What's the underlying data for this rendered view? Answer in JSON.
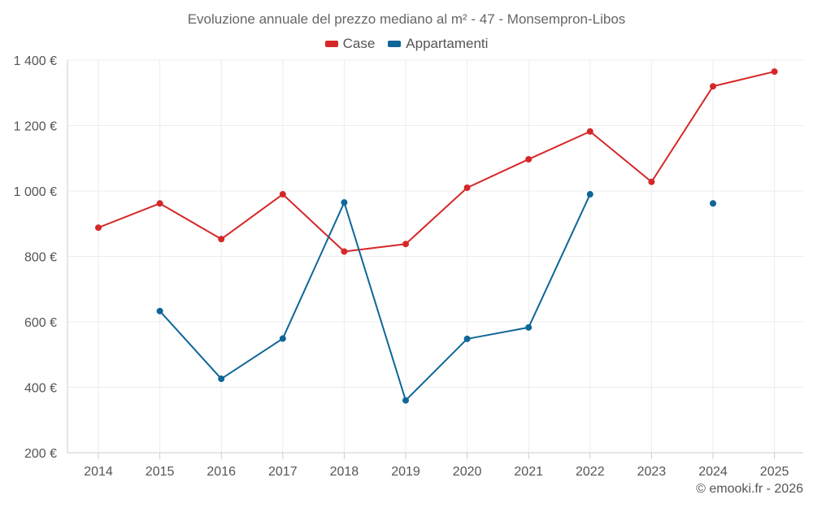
{
  "chart_data": {
    "type": "line",
    "title": "Evoluzione annuale del prezzo mediano al m² - 47 - Monsempron-Libos",
    "xlabel": "",
    "ylabel": "",
    "categories": [
      "2014",
      "2015",
      "2016",
      "2017",
      "2018",
      "2019",
      "2020",
      "2021",
      "2022",
      "2023",
      "2024",
      "2025"
    ],
    "ylim": [
      200,
      1400
    ],
    "yticks": [
      200,
      400,
      600,
      800,
      1000,
      1200,
      1400
    ],
    "ytick_labels": [
      "200 €",
      "400 €",
      "600 €",
      "800 €",
      "1 000 €",
      "1 200 €",
      "1 400 €"
    ],
    "grid": true,
    "legend_position": "top-center",
    "series": [
      {
        "name": "Case",
        "color": "#d62728",
        "values": [
          888,
          962,
          853,
          990,
          815,
          838,
          1010,
          1097,
          1182,
          1028,
          1320,
          1365
        ]
      },
      {
        "name": "Appartamenti",
        "color": "#0e6699",
        "values": [
          null,
          633,
          426,
          549,
          965,
          360,
          548,
          583,
          990,
          null,
          962,
          null
        ]
      }
    ]
  },
  "credit": "© emooki.fr - 2026"
}
